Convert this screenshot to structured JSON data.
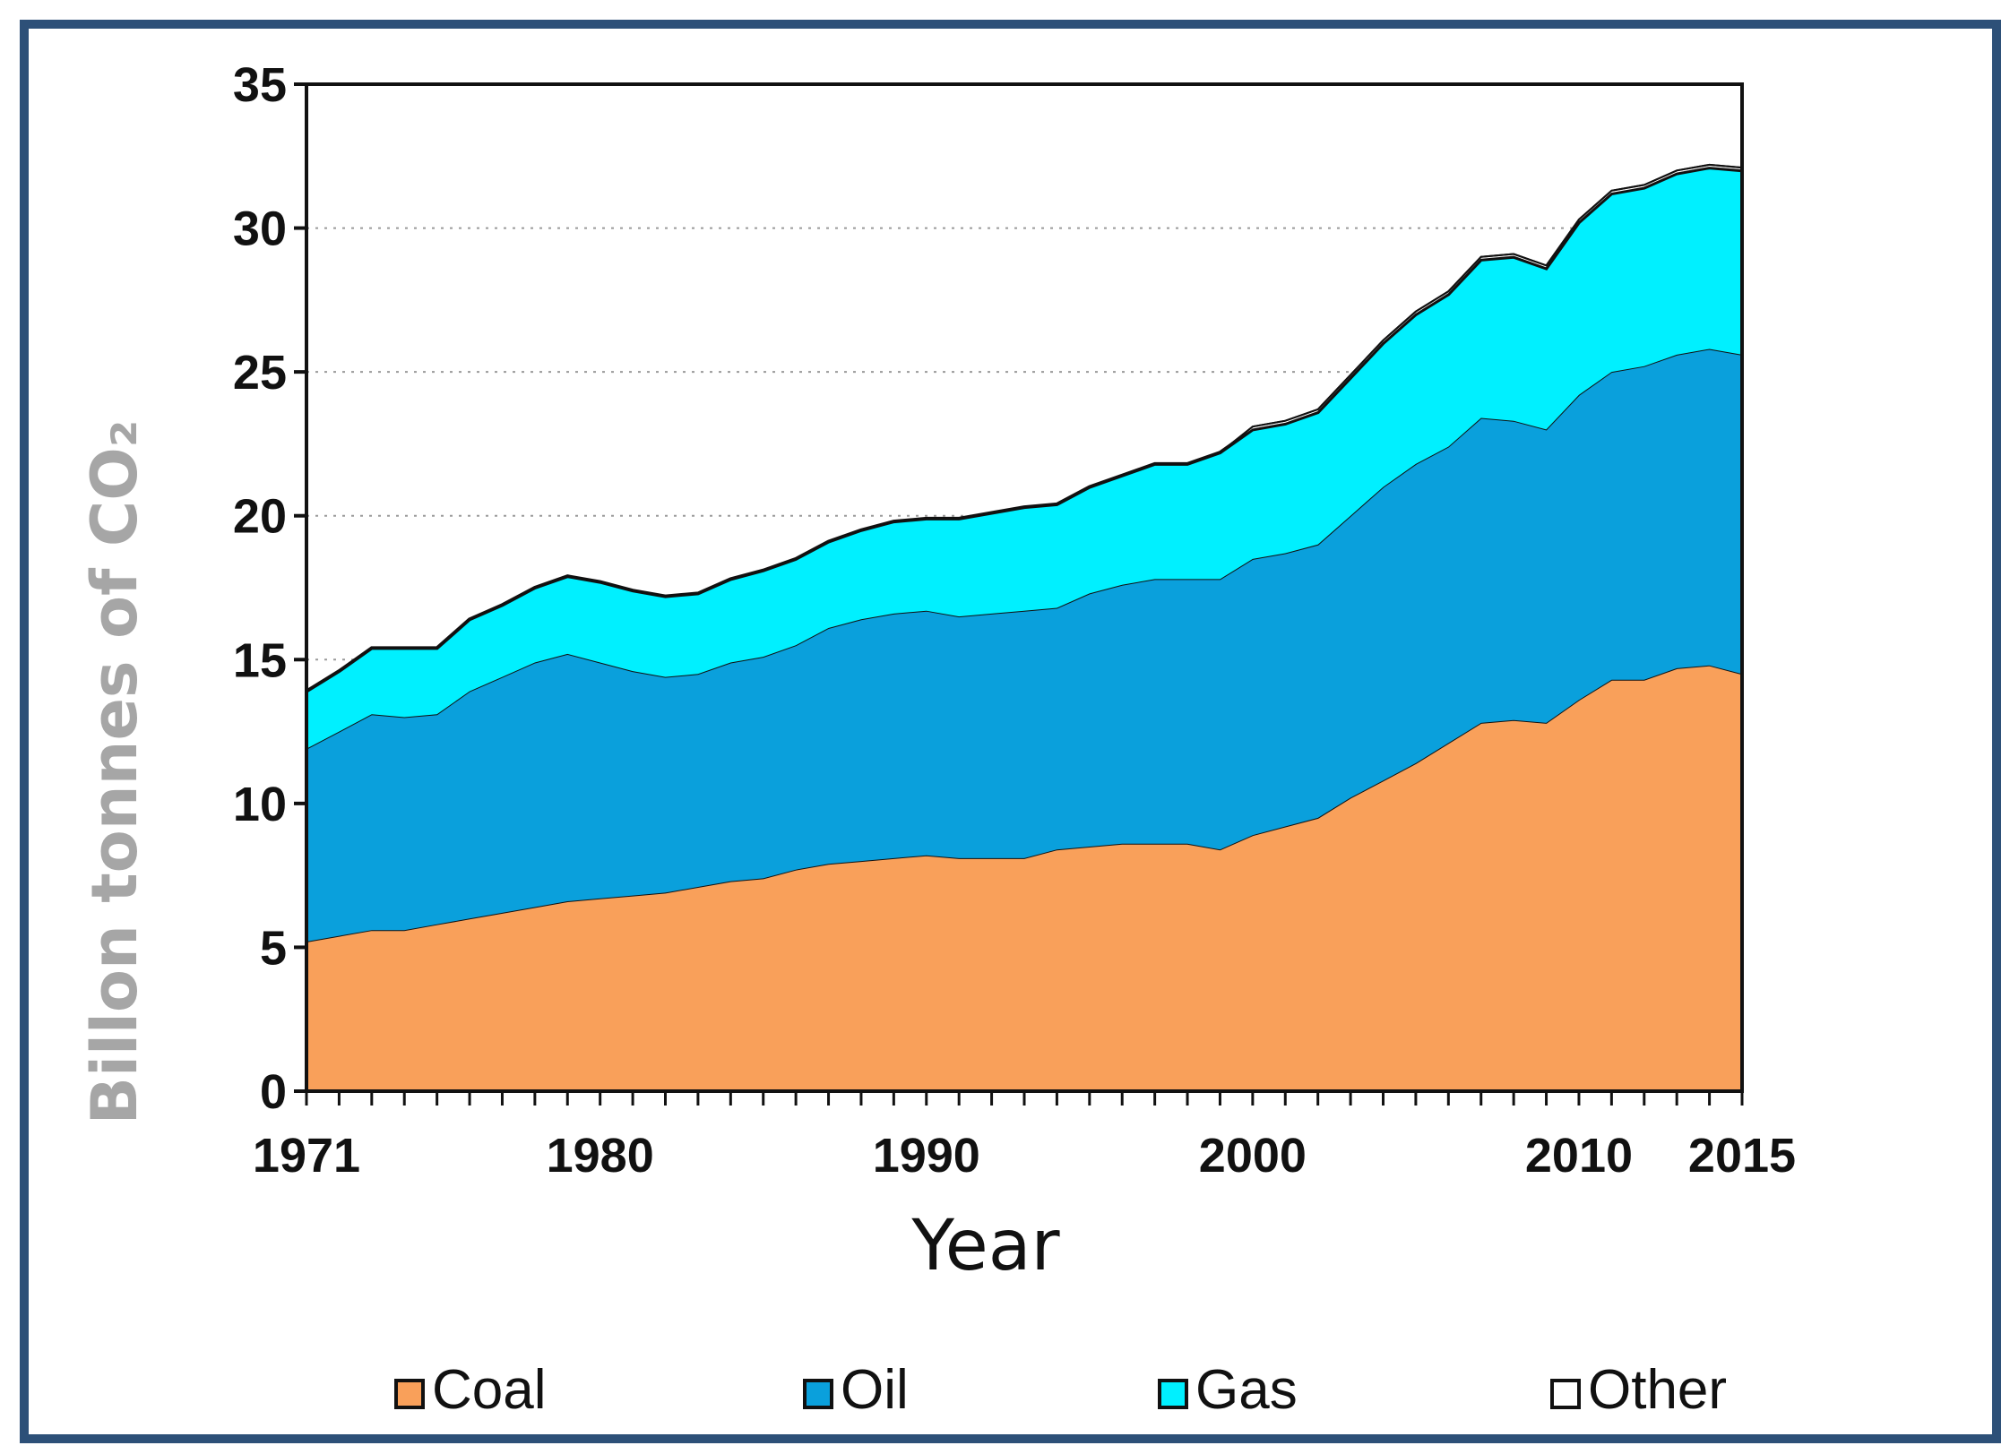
{
  "chart_data": {
    "type": "area",
    "stacked": true,
    "title": "",
    "xlabel": "Year",
    "ylabel": "Billon tonnes of CO₂",
    "xlim": [
      1971,
      2015
    ],
    "ylim": [
      0,
      35
    ],
    "x_ticks": [
      1971,
      1980,
      1990,
      2000,
      2010,
      2015
    ],
    "y_ticks": [
      0,
      5,
      10,
      15,
      20,
      25,
      30,
      35
    ],
    "grid": "horizontal-dotted",
    "legend_position": "bottom",
    "x": [
      1971,
      1972,
      1973,
      1974,
      1975,
      1976,
      1977,
      1978,
      1979,
      1980,
      1981,
      1982,
      1983,
      1984,
      1985,
      1986,
      1987,
      1988,
      1989,
      1990,
      1991,
      1992,
      1993,
      1994,
      1995,
      1996,
      1997,
      1998,
      1999,
      2000,
      2001,
      2002,
      2003,
      2004,
      2005,
      2006,
      2007,
      2008,
      2009,
      2010,
      2011,
      2012,
      2013,
      2014,
      2015
    ],
    "series": [
      {
        "name": "Coal",
        "color": "#f9a05a",
        "values": [
          5.2,
          5.4,
          5.6,
          5.6,
          5.8,
          6.0,
          6.2,
          6.4,
          6.6,
          6.7,
          6.8,
          6.9,
          7.1,
          7.3,
          7.4,
          7.7,
          7.9,
          8.0,
          8.1,
          8.2,
          8.1,
          8.1,
          8.1,
          8.4,
          8.5,
          8.6,
          8.6,
          8.6,
          8.4,
          8.9,
          9.2,
          9.5,
          10.2,
          10.8,
          11.4,
          12.1,
          12.8,
          12.9,
          12.8,
          13.6,
          14.3,
          14.3,
          14.7,
          14.8,
          14.5
        ]
      },
      {
        "name": "Oil",
        "color": "#0aa0dc",
        "values": [
          6.7,
          7.1,
          7.5,
          7.4,
          7.3,
          7.9,
          8.2,
          8.5,
          8.6,
          8.2,
          7.8,
          7.5,
          7.4,
          7.6,
          7.7,
          7.8,
          8.2,
          8.4,
          8.5,
          8.5,
          8.4,
          8.5,
          8.6,
          8.4,
          8.8,
          9.0,
          9.2,
          9.2,
          9.4,
          9.6,
          9.5,
          9.5,
          9.8,
          10.2,
          10.4,
          10.3,
          10.6,
          10.4,
          10.2,
          10.6,
          10.7,
          10.9,
          10.9,
          11.0,
          11.1
        ]
      },
      {
        "name": "Gas",
        "color": "#00f0ff",
        "values": [
          2.0,
          2.1,
          2.3,
          2.4,
          2.3,
          2.5,
          2.5,
          2.6,
          2.7,
          2.8,
          2.8,
          2.8,
          2.8,
          2.9,
          3.0,
          3.0,
          3.0,
          3.1,
          3.2,
          3.2,
          3.4,
          3.5,
          3.6,
          3.6,
          3.7,
          3.8,
          4.0,
          4.0,
          4.4,
          4.5,
          4.5,
          4.6,
          4.8,
          5.0,
          5.2,
          5.3,
          5.5,
          5.7,
          5.6,
          6.0,
          6.2,
          6.2,
          6.3,
          6.3,
          6.4
        ]
      },
      {
        "name": "Other",
        "color": "#ffffff",
        "values": [
          0.0,
          0.0,
          0.0,
          0.0,
          0.0,
          0.0,
          0.0,
          0.0,
          0.0,
          0.0,
          0.0,
          0.0,
          0.0,
          0.0,
          0.0,
          0.0,
          0.0,
          0.0,
          0.0,
          0.0,
          0.0,
          0.0,
          0.0,
          0.0,
          0.0,
          0.0,
          0.0,
          0.0,
          0.0,
          0.1,
          0.1,
          0.1,
          0.1,
          0.1,
          0.1,
          0.1,
          0.1,
          0.1,
          0.1,
          0.1,
          0.1,
          0.1,
          0.1,
          0.1,
          0.1
        ]
      }
    ]
  }
}
